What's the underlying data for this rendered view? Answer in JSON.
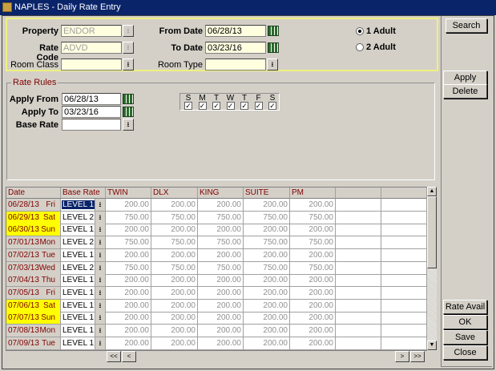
{
  "window": {
    "title": "NAPLES - Daily Rate Entry"
  },
  "search": {
    "property_label": "Property",
    "property_value": "ENDOR",
    "rate_code_label": "Rate Code",
    "rate_code_value": "ADVD",
    "room_class_label": "Room Class",
    "room_class_value": "",
    "from_date_label": "From Date",
    "from_date_value": "06/28/13",
    "to_date_label": "To Date",
    "to_date_value": "03/23/16",
    "room_type_label": "Room Type",
    "room_type_value": "",
    "adults": [
      {
        "label": "1 Adult",
        "selected": true
      },
      {
        "label": "2 Adult",
        "selected": false
      }
    ]
  },
  "rate_rules": {
    "legend": "Rate Rules",
    "apply_from_label": "Apply From",
    "apply_from_value": "06/28/13",
    "apply_to_label": "Apply To",
    "apply_to_value": "03/23/16",
    "base_rate_label": "Base Rate",
    "base_rate_value": "",
    "days": [
      {
        "label": "S",
        "checked": true
      },
      {
        "label": "M",
        "checked": true
      },
      {
        "label": "T",
        "checked": true
      },
      {
        "label": "W",
        "checked": true
      },
      {
        "label": "T",
        "checked": true
      },
      {
        "label": "F",
        "checked": true
      },
      {
        "label": "S",
        "checked": true
      }
    ]
  },
  "grid": {
    "columns": [
      "Date",
      "Base Rate",
      "TWIN",
      "DLX",
      "KING",
      "SUITE",
      "PM",
      "",
      ""
    ],
    "rows": [
      {
        "date": "06/28/13",
        "day": "Fri",
        "base": "LEVEL 1",
        "rates": [
          "200.00",
          "200.00",
          "200.00",
          "200.00",
          "200.00"
        ],
        "weekend": false,
        "selected": true
      },
      {
        "date": "06/29/13",
        "day": "Sat",
        "base": "LEVEL 2",
        "rates": [
          "750.00",
          "750.00",
          "750.00",
          "750.00",
          "750.00"
        ],
        "weekend": true
      },
      {
        "date": "06/30/13",
        "day": "Sun",
        "base": "LEVEL 1",
        "rates": [
          "200.00",
          "200.00",
          "200.00",
          "200.00",
          "200.00"
        ],
        "weekend": true
      },
      {
        "date": "07/01/13",
        "day": "Mon",
        "base": "LEVEL 2",
        "rates": [
          "750.00",
          "750.00",
          "750.00",
          "750.00",
          "750.00"
        ],
        "weekend": false
      },
      {
        "date": "07/02/13",
        "day": "Tue",
        "base": "LEVEL 1",
        "rates": [
          "200.00",
          "200.00",
          "200.00",
          "200.00",
          "200.00"
        ],
        "weekend": false
      },
      {
        "date": "07/03/13",
        "day": "Wed",
        "base": "LEVEL 2",
        "rates": [
          "750.00",
          "750.00",
          "750.00",
          "750.00",
          "750.00"
        ],
        "weekend": false
      },
      {
        "date": "07/04/13",
        "day": "Thu",
        "base": "LEVEL 1",
        "rates": [
          "200.00",
          "200.00",
          "200.00",
          "200.00",
          "200.00"
        ],
        "weekend": false
      },
      {
        "date": "07/05/13",
        "day": "Fri",
        "base": "LEVEL 1",
        "rates": [
          "200.00",
          "200.00",
          "200.00",
          "200.00",
          "200.00"
        ],
        "weekend": false
      },
      {
        "date": "07/06/13",
        "day": "Sat",
        "base": "LEVEL 1",
        "rates": [
          "200.00",
          "200.00",
          "200.00",
          "200.00",
          "200.00"
        ],
        "weekend": true
      },
      {
        "date": "07/07/13",
        "day": "Sun",
        "base": "LEVEL 1",
        "rates": [
          "200.00",
          "200.00",
          "200.00",
          "200.00",
          "200.00"
        ],
        "weekend": true
      },
      {
        "date": "07/08/13",
        "day": "Mon",
        "base": "LEVEL 1",
        "rates": [
          "200.00",
          "200.00",
          "200.00",
          "200.00",
          "200.00"
        ],
        "weekend": false
      },
      {
        "date": "07/09/13",
        "day": "Tue",
        "base": "LEVEL 1",
        "rates": [
          "200.00",
          "200.00",
          "200.00",
          "200.00",
          "200.00"
        ],
        "weekend": false
      }
    ],
    "nav": {
      "first": "<<",
      "prev": "<",
      "next": ">",
      "last": ">>"
    }
  },
  "buttons": {
    "search": "Search",
    "apply": "Apply",
    "delete": "Delete",
    "rate_avail": "Rate Avail",
    "ok": "OK",
    "save": "Save",
    "close": "Close"
  },
  "colors": {
    "titlebar": "#0a246a",
    "weekend_highlight": "#ffff00",
    "search_panel_border": "#f0f080",
    "label_accent": "#800000"
  }
}
